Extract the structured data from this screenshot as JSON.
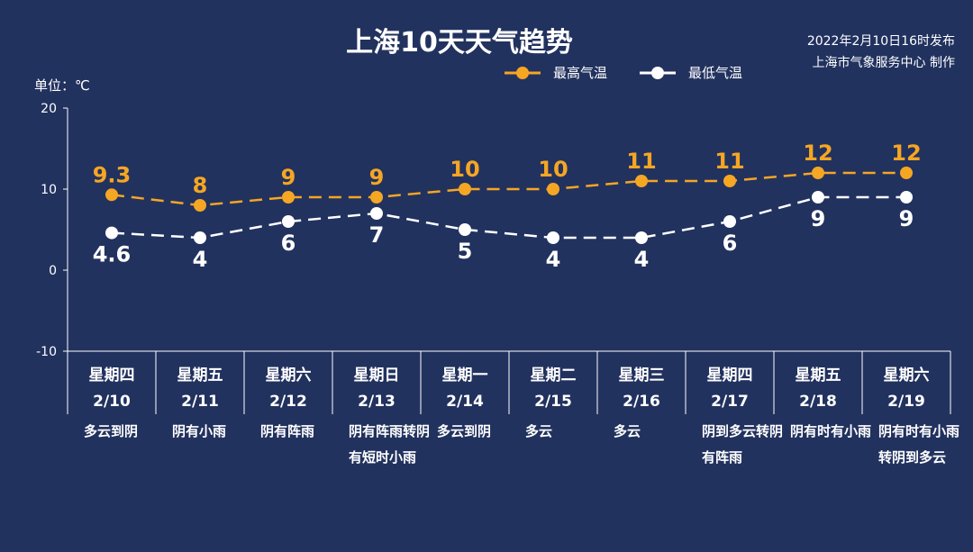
{
  "title": "上海10天天气趋势",
  "publish": {
    "line1": "2022年2月10日16时发布",
    "line2": "上海市气象服务中心 制作"
  },
  "unit_label": "单位：℃",
  "colors": {
    "background": "#22325f",
    "max_series": "#f5a623",
    "min_series": "#ffffff"
  },
  "chart_data": {
    "type": "line",
    "ylim": [
      -10,
      20
    ],
    "yticks": [
      -10,
      0,
      10,
      20
    ],
    "legend_position": "top",
    "grid": false,
    "days": [
      {
        "weekday": "星期四",
        "date": "2/10",
        "weather": "多云到阴"
      },
      {
        "weekday": "星期五",
        "date": "2/11",
        "weather": "阴有小雨"
      },
      {
        "weekday": "星期六",
        "date": "2/12",
        "weather": "阴有阵雨"
      },
      {
        "weekday": "星期日",
        "date": "2/13",
        "weather": "阴有阵雨转阴有短时小雨"
      },
      {
        "weekday": "星期一",
        "date": "2/14",
        "weather": "多云到阴"
      },
      {
        "weekday": "星期二",
        "date": "2/15",
        "weather": "多云"
      },
      {
        "weekday": "星期三",
        "date": "2/16",
        "weather": "多云"
      },
      {
        "weekday": "星期四",
        "date": "2/17",
        "weather": "阴到多云转阴有阵雨"
      },
      {
        "weekday": "星期五",
        "date": "2/18",
        "weather": "阴有时有小雨"
      },
      {
        "weekday": "星期六",
        "date": "2/19",
        "weather": "阴有时有小雨转阴到多云"
      }
    ],
    "series": [
      {
        "name": "最高气温",
        "values": [
          9.3,
          8,
          9,
          9,
          10,
          10,
          11,
          11,
          12,
          12
        ],
        "labels": [
          "9.3",
          "8",
          "9",
          "9",
          "10",
          "10",
          "11",
          "11",
          "12",
          "12"
        ]
      },
      {
        "name": "最低气温",
        "values": [
          4.6,
          4,
          6,
          7,
          5,
          4,
          4,
          6,
          9,
          9
        ],
        "labels": [
          "4.6",
          "4",
          "6",
          "7",
          "5",
          "4",
          "4",
          "6",
          "9",
          "9"
        ]
      }
    ]
  }
}
